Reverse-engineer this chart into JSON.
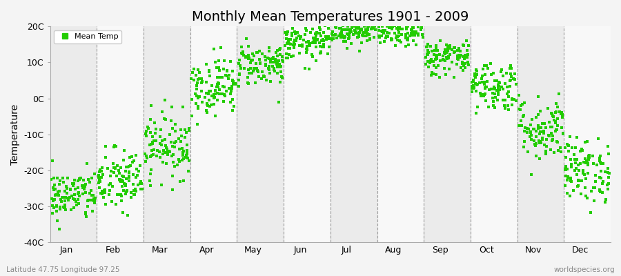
{
  "title": "Monthly Mean Temperatures 1901 - 2009",
  "ylabel": "Temperature",
  "bottom_left": "Latitude 47.75 Longitude 97.25",
  "bottom_right": "worldspecies.org",
  "ylim": [
    -40,
    20
  ],
  "yticks": [
    -40,
    -30,
    -20,
    -10,
    0,
    10,
    20
  ],
  "ytick_labels": [
    "-40C",
    "-30C",
    "-20C",
    "-10C",
    "0C",
    "10C",
    "20C"
  ],
  "months": [
    "Jan",
    "Feb",
    "Mar",
    "Apr",
    "May",
    "Jun",
    "Jul",
    "Aug",
    "Sep",
    "Oct",
    "Nov",
    "Dec"
  ],
  "mean_temps": [
    -27.0,
    -23.0,
    -13.0,
    3.5,
    9.5,
    15.5,
    19.0,
    18.5,
    11.5,
    3.5,
    -8.5,
    -20.0
  ],
  "std_temps": [
    3.5,
    4.5,
    4.5,
    4.0,
    3.0,
    2.5,
    2.0,
    2.0,
    2.5,
    3.5,
    4.5,
    4.5
  ],
  "n_years": 109,
  "dot_color": "#22cc00",
  "marker": "s",
  "marker_size": 3,
  "legend_label": "Mean Temp",
  "background_color": "#f4f4f4",
  "band_colors": [
    "#ebebeb",
    "#f8f8f8"
  ],
  "title_fontsize": 14,
  "axis_label_fontsize": 10,
  "tick_fontsize": 9,
  "seed": 42
}
